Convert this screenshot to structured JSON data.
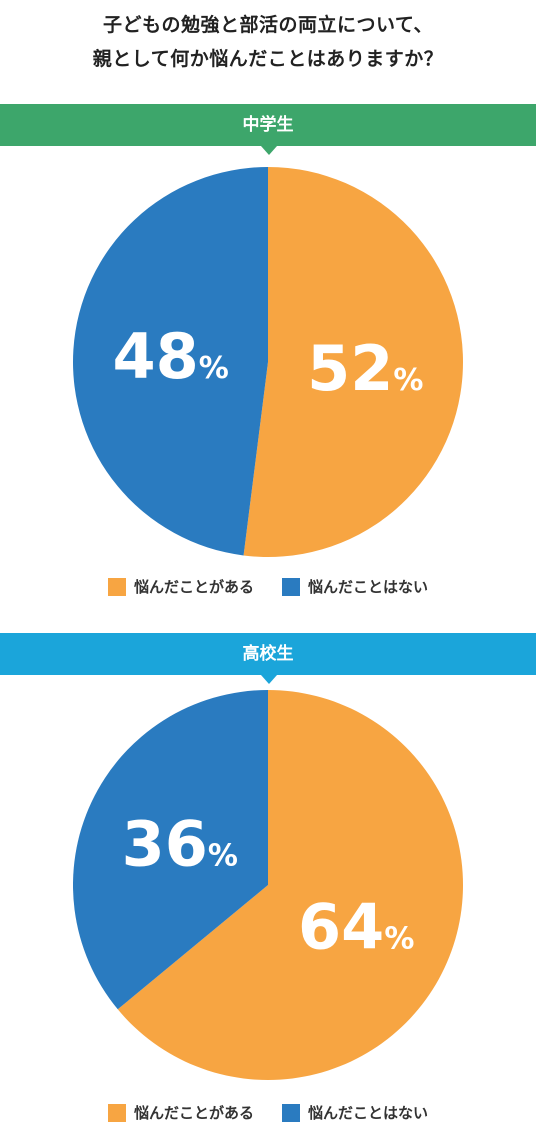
{
  "title": {
    "line1": "子どもの勉強と部活の両立について、",
    "line2": "親として何か悩んだことはありますか？"
  },
  "chart_data": [
    {
      "type": "pie",
      "title": "中学生",
      "categories": [
        "悩んだことがある",
        "悩んだことはない"
      ],
      "values": [
        52,
        48
      ],
      "unit": "%",
      "colors": [
        "#f7a542",
        "#2a7bc0"
      ],
      "banner_color": "#3da66b"
    },
    {
      "type": "pie",
      "title": "高校生",
      "categories": [
        "悩んだことがある",
        "悩んだことはない"
      ],
      "values": [
        64,
        36
      ],
      "unit": "%",
      "colors": [
        "#f7a542",
        "#2a7bc0"
      ],
      "banner_color": "#1ba5da"
    }
  ]
}
